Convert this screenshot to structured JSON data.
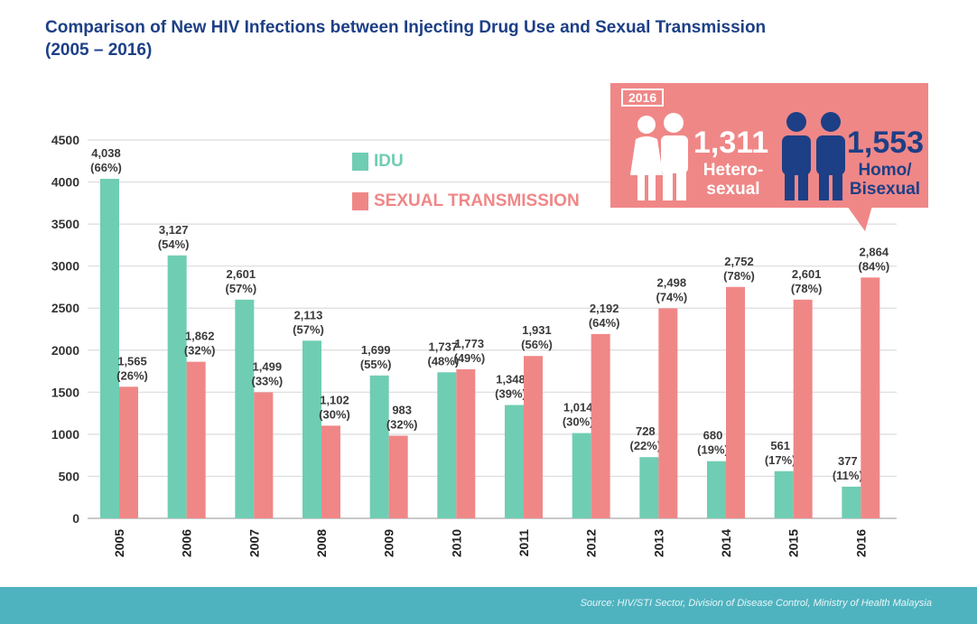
{
  "title_line1": "Comparison of New HIV Infections between Injecting Drug Use and Sexual Transmission",
  "title_line2": "(2005 – 2016)",
  "colors": {
    "idu": "#6fcdb3",
    "sexual": "#f08787",
    "title": "#1d3f86",
    "footer": "#4fb3bf"
  },
  "legend": {
    "idu": "IDU",
    "sexual": "SEXUAL TRANSMISSION"
  },
  "callout": {
    "year": "2016",
    "hetero_value": "1,311",
    "hetero_label_1": "Hetero-",
    "hetero_label_2": "sexual",
    "homo_value": "1,553",
    "homo_label_1": "Homo/",
    "homo_label_2": "Bisexual",
    "icons": [
      "hetero-couple-icon",
      "homo-couple-icon"
    ]
  },
  "footer": {
    "source": "Source: HIV/STI Sector, Division of Disease Control, Ministry of Health Malaysia"
  },
  "chart_data": {
    "type": "bar",
    "categories": [
      "2005",
      "2006",
      "2007",
      "2008",
      "2009",
      "2010",
      "2011",
      "2012",
      "2013",
      "2014",
      "2015",
      "2016"
    ],
    "series": [
      {
        "name": "IDU",
        "values": [
          4038,
          3127,
          2601,
          2113,
          1699,
          1737,
          1348,
          1014,
          728,
          680,
          561,
          377
        ],
        "labels": [
          "4,038",
          "3,127",
          "2,601",
          "2,113",
          "1,699",
          "1,737",
          "1,348",
          "1,014",
          "728",
          "680",
          "561",
          "377"
        ],
        "pct": [
          "(66%)",
          "(54%)",
          "(57%)",
          "(57%)",
          "(55%)",
          "(48%)",
          "(39%)",
          "(30%)",
          "(22%)",
          "(19%)",
          "(17%)",
          "(11%)"
        ]
      },
      {
        "name": "SEXUAL TRANSMISSION",
        "values": [
          1565,
          1862,
          1499,
          1102,
          983,
          1773,
          1931,
          2192,
          2498,
          2752,
          2601,
          2864
        ],
        "labels": [
          "1,565",
          "1,862",
          "1,499",
          "1,102",
          "983",
          "1,773",
          "1,931",
          "2,192",
          "2,498",
          "2,752",
          "2,601",
          "2,864"
        ],
        "pct": [
          "(26%)",
          "(32%)",
          "(33%)",
          "(30%)",
          "(32%)",
          "(49%)",
          "(56%)",
          "(64%)",
          "(74%)",
          "(78%)",
          "(78%)",
          "(84%)"
        ]
      }
    ],
    "yticks": [
      0,
      500,
      1000,
      1500,
      2000,
      2500,
      3000,
      3500,
      4000,
      4500
    ],
    "ylim": [
      0,
      4500
    ],
    "grid": true,
    "legend": "top-center"
  }
}
